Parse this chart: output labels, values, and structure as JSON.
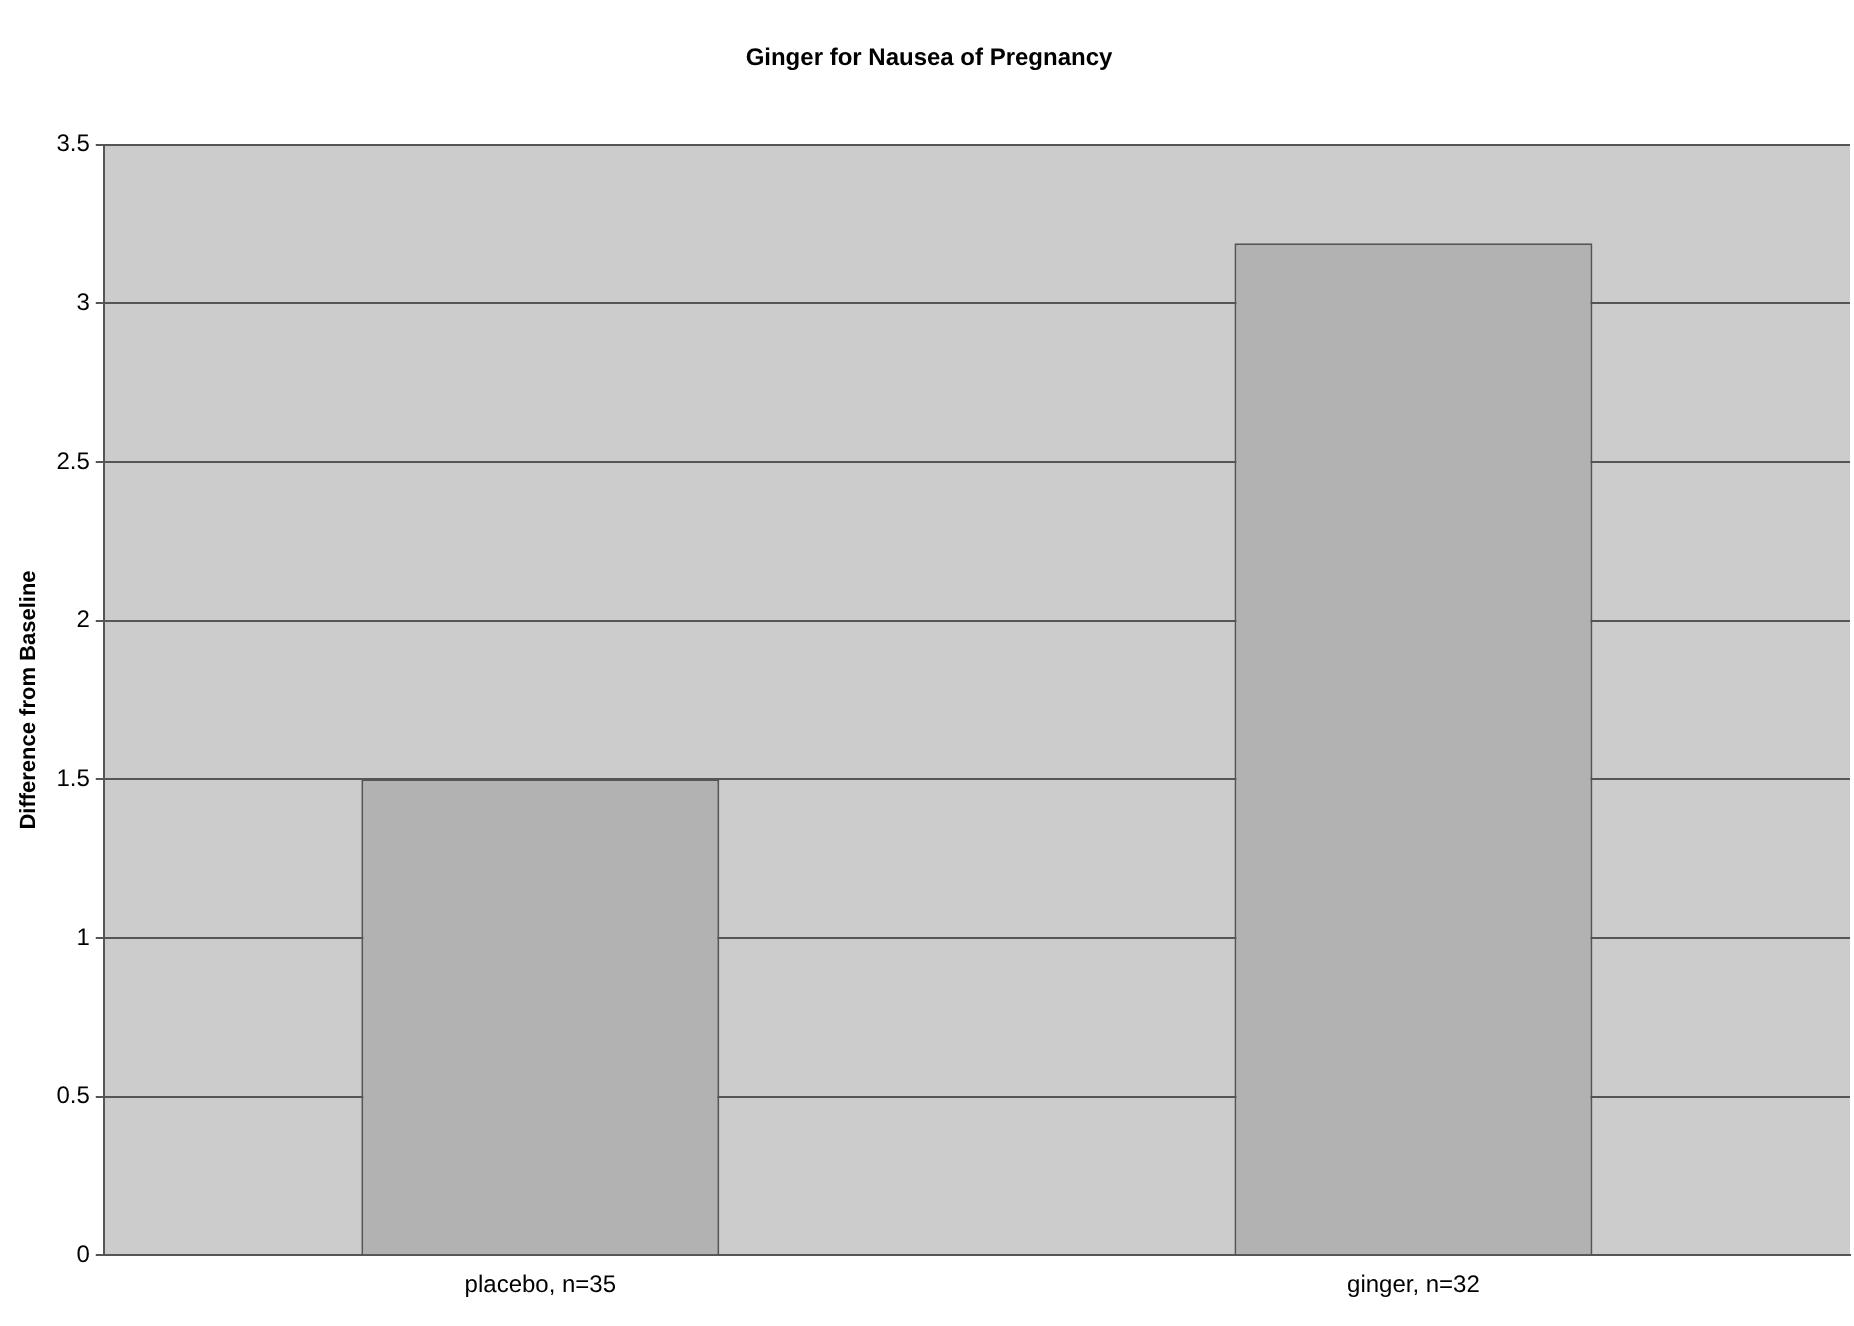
{
  "chart_data": {
    "type": "bar",
    "title": "Ginger for Nausea of Pregnancy",
    "ylabel": "Difference from Baseline",
    "categories": [
      "placebo, n=35",
      "ginger, n=32"
    ],
    "values": [
      1.5,
      3.19
    ],
    "color": "#b2b2b2",
    "ylim": [
      0,
      3.5
    ],
    "yticks": [
      0,
      0.5,
      1,
      1.5,
      2,
      2.5,
      3,
      3.5
    ],
    "grid": "y",
    "legend": false
  }
}
